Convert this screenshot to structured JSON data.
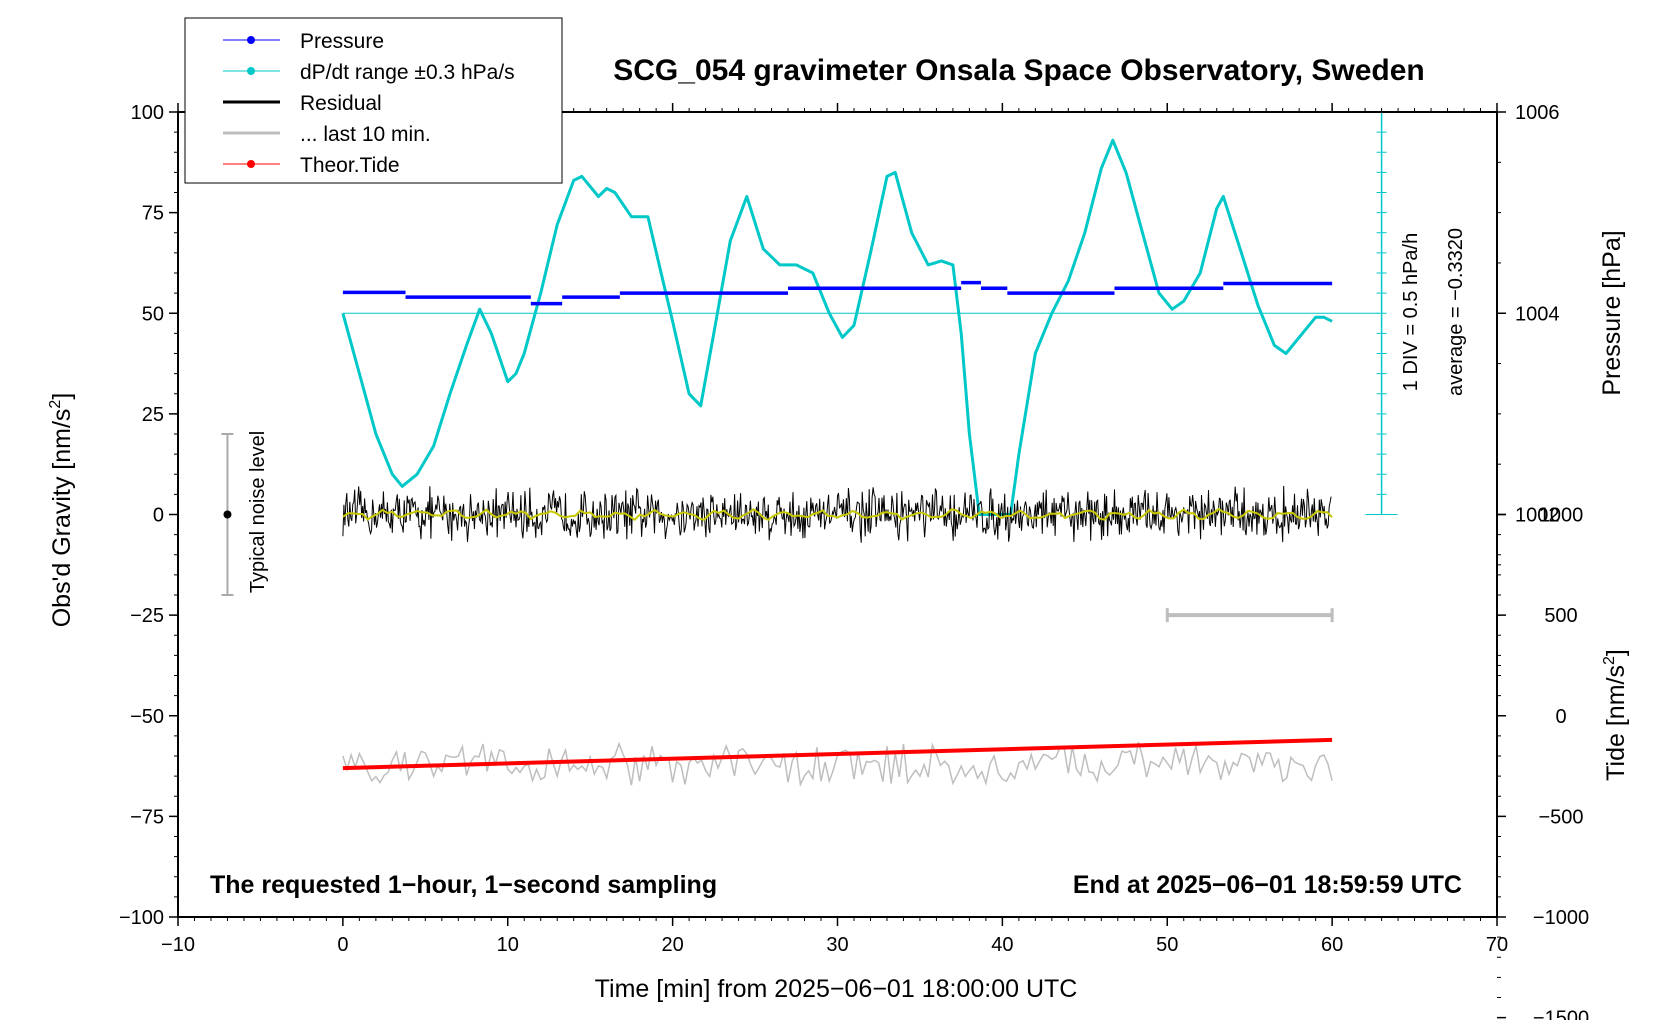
{
  "chart_data": {
    "type": "line",
    "title": "SCG_054 gravimeter Onsala Space Observatory, Sweden",
    "xlabel": "Time [min] from 2025−06−01 18:00:00 UTC",
    "xlim": [
      -10,
      70
    ],
    "xticks": [
      -10,
      0,
      10,
      20,
      30,
      40,
      50,
      60,
      70
    ],
    "xtick_labels": [
      "−10",
      "0",
      "10",
      "20",
      "30",
      "40",
      "50",
      "60",
      "70"
    ],
    "y_left": {
      "label_main": "Obs'd Gravity [nm/s",
      "label_sup": "2",
      "label_end": "]",
      "ylim": [
        -100,
        100
      ],
      "ticks": [
        -100,
        -75,
        -50,
        -25,
        0,
        25,
        50,
        75,
        100
      ],
      "tick_labels": [
        "−100",
        "−75",
        "−50",
        "−25",
        "0",
        "25",
        "50",
        "75",
        "100"
      ]
    },
    "y_pressure": {
      "label": "Pressure [hPa]",
      "ticks": [
        1002,
        1004,
        1006
      ],
      "tick_labels": [
        "1002",
        "1004",
        "1006"
      ],
      "gravity_per_hpa": 25,
      "gravity_at_1004": 50
    },
    "y_tide": {
      "label_main": "Tide [nm/s",
      "label_sup": "2",
      "label_end": "]",
      "ticks": [
        -1500,
        -1000,
        -500,
        0,
        500,
        1000
      ],
      "tick_labels": [
        "−1500",
        "−1000",
        "−500",
        "0",
        "500",
        "1000"
      ],
      "gravity_per_nms2": 0.05,
      "gravity_at_0": -50
    },
    "legend": {
      "placement": "top-left",
      "entries": [
        {
          "label": "Pressure",
          "color": "#0000ff",
          "marker": true
        },
        {
          "label": "dP/dt range ±0.3 hPa/s",
          "color": "#00c8c8",
          "marker": true
        },
        {
          "label": "Residual",
          "color": "#000000",
          "marker": false
        },
        {
          "label": "... last 10 min.",
          "color": "#bebebe",
          "marker": false
        },
        {
          "label": "Theor.Tide",
          "color": "#ff0000",
          "marker": true
        }
      ]
    },
    "annotations": {
      "bottom_left": "The requested 1−hour, 1−second sampling",
      "bottom_right": "End at 2025−06−01 18:59:59 UTC",
      "div_line1": "1 DIV = 0.5 hPa/h",
      "div_line2": "average = −0.3320",
      "noise_label": "Typical noise level"
    },
    "noise_bar": {
      "x": -7,
      "center": 0,
      "half_range": 20
    },
    "gray_bar": {
      "x_from": 50,
      "x_to": 60,
      "y": -25
    },
    "div_scale": {
      "x": 63,
      "y_from": 0,
      "y_to": 100,
      "step": 5
    },
    "dpdt_reference_y": 50,
    "colors": {
      "pressure": "#0000ff",
      "dpdt": "#00c8c8",
      "residual": "#000000",
      "residual_smooth": "#c8c800",
      "last10": "#bebebe",
      "tide": "#ff0000"
    },
    "series": [
      {
        "name": "Pressure",
        "unit": "gravity-axis",
        "segments": [
          {
            "x": [
              0,
              3.8
            ],
            "y": 55.2
          },
          {
            "x": [
              3.8,
              11.4
            ],
            "y": 54.0
          },
          {
            "x": [
              11.4,
              13.3
            ],
            "y": 52.4
          },
          {
            "x": [
              13.3,
              16.8
            ],
            "y": 54.0
          },
          {
            "x": [
              16.8,
              27.0
            ],
            "y": 55.0
          },
          {
            "x": [
              27.0,
              37.5
            ],
            "y": 56.2
          },
          {
            "x": [
              37.5,
              38.7
            ],
            "y": 57.6
          },
          {
            "x": [
              38.7,
              40.3
            ],
            "y": 56.2
          },
          {
            "x": [
              40.3,
              46.8
            ],
            "y": 55.0
          },
          {
            "x": [
              46.8,
              53.4
            ],
            "y": 56.2
          },
          {
            "x": [
              53.4,
              60.0
            ],
            "y": 57.4
          }
        ]
      },
      {
        "name": "dP/dt range ±0.3 hPa/s",
        "x": [
          0,
          1.0,
          2.0,
          3.0,
          3.6,
          4.5,
          5.5,
          6.5,
          7.5,
          8.3,
          9.0,
          10.0,
          10.5,
          11.0,
          12.0,
          13.0,
          14.0,
          14.5,
          15.5,
          16.0,
          16.5,
          17.5,
          18.5,
          19.3,
          20.0,
          21.0,
          21.7,
          22.5,
          23.5,
          24.5,
          25.5,
          26.5,
          27.5,
          28.5,
          29.5,
          30.3,
          31.0,
          32.0,
          33.0,
          33.5,
          34.5,
          35.5,
          36.3,
          37.0,
          37.5,
          38.0,
          38.6,
          39.5,
          40.5,
          41.0,
          42.0,
          43.0,
          44.0,
          45.0,
          46.0,
          46.7,
          47.5,
          48.5,
          49.5,
          50.3,
          51.0,
          52.0,
          53.0,
          53.4,
          54.5,
          55.5,
          56.5,
          57.2,
          58.0,
          59.0,
          59.5,
          60.0
        ],
        "y": [
          50,
          35,
          20,
          10,
          7,
          10,
          17,
          30,
          42,
          51,
          45,
          33,
          35,
          40,
          55,
          72,
          83,
          84,
          79,
          81,
          80,
          74,
          74,
          60,
          48,
          30,
          27,
          45,
          68,
          79,
          66,
          62,
          62,
          60,
          50,
          44,
          47,
          65,
          84,
          85,
          70,
          62,
          63,
          62,
          45,
          20,
          0,
          0,
          0,
          15,
          40,
          50,
          58,
          70,
          86,
          93,
          85,
          70,
          55,
          51,
          53,
          60,
          76,
          79,
          65,
          52,
          42,
          40,
          44,
          49,
          49,
          48
        ]
      },
      {
        "name": "Residual",
        "center": 0,
        "amplitude": 5,
        "x_range": [
          0,
          60
        ]
      },
      {
        "name": "... last 10 min.",
        "center": -62,
        "amplitude": 4,
        "x_range": [
          0,
          60
        ]
      },
      {
        "name": "Theor.Tide",
        "x": [
          0,
          60
        ],
        "y": [
          -63,
          -56
        ]
      }
    ]
  }
}
